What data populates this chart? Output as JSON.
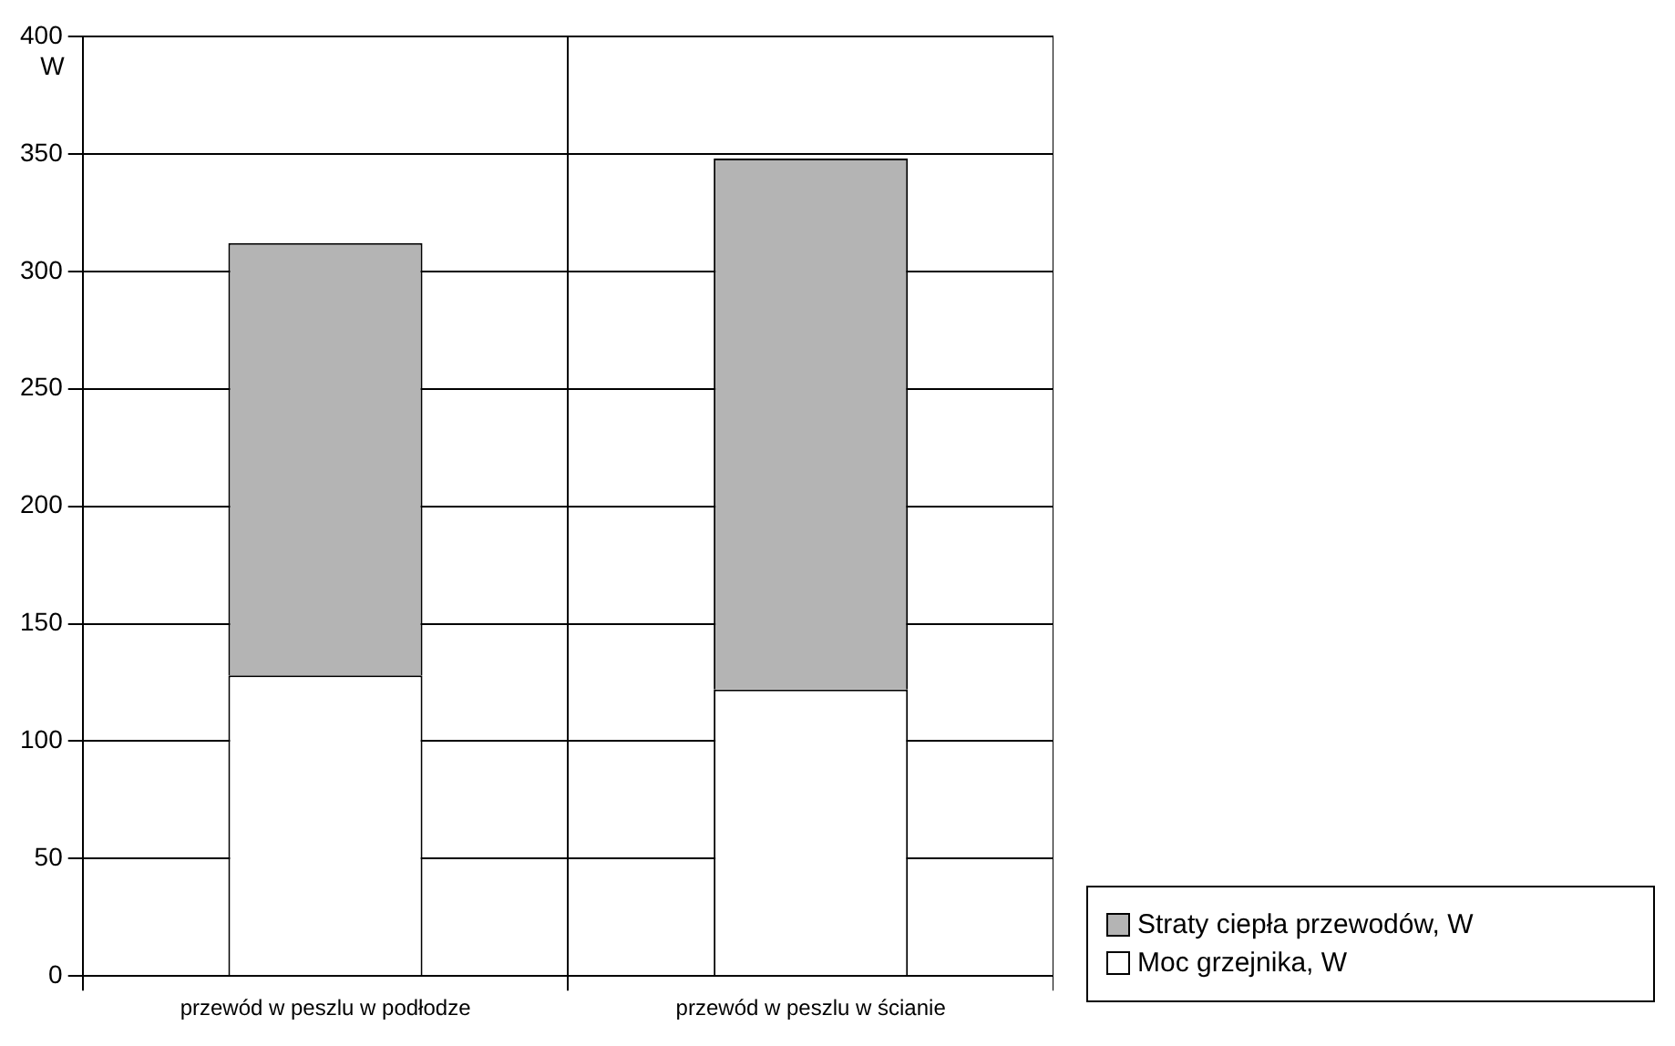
{
  "chart_data": {
    "type": "bar",
    "ylabel": "W",
    "categories": [
      "przewód w peszlu w podłodze",
      "przewód w peszlu w ścianie"
    ],
    "stacked": true,
    "series": [
      {
        "name": "Moc grzejnika, W",
        "color": "#ffffff",
        "values": [
          128,
          122
        ]
      },
      {
        "name": "Straty ciepła przewodów, W",
        "color": "#b4b4b4",
        "values": [
          184,
          226
        ]
      }
    ],
    "ylim": [
      0,
      400
    ],
    "yticks": [
      0,
      50,
      100,
      150,
      200,
      250,
      300,
      350,
      400
    ],
    "grid": true,
    "legend": "bottom right"
  }
}
